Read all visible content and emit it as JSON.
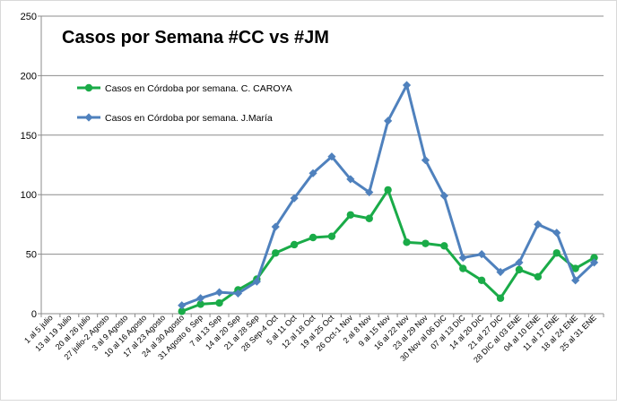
{
  "chart_data": {
    "type": "line",
    "title": "Casos por Semana #CC vs #JM",
    "xlabel": "",
    "ylabel": "",
    "ylim": [
      0,
      250
    ],
    "yticks": [
      0,
      50,
      100,
      150,
      200,
      250
    ],
    "grid": true,
    "legend_position": "top-left",
    "categories": [
      "1 al 5 julio",
      "13 al 19 Julio",
      "20 al 26 julio",
      "27 julio-2 Agosto",
      "3 al 9 Agosto",
      "10 al 16 Agosto",
      "17 al 23 Agosto",
      "24 al 30 Agosto",
      "31 Agosto 6 Sep",
      "7 al 13 Sep",
      "14 al 20 Sep",
      "21 al 28 Sep",
      "28 Sep-4 Oct",
      "5 al 11 Oct",
      "12 al 18 Oct",
      "19 al 25 Oct",
      "26 Oct-1 Nov",
      "2 al 8 Nov",
      "9 al 15 Nov",
      "16 al 22 Nov",
      "23 al 29 Nov",
      "30 Nov al 06 DIC",
      "07 al 13 DIC",
      "14 al 20 DIC",
      "21 al 27 DIC",
      "28 DIC al 03 ENE",
      "04 al 10 ENE",
      "11 al 17 ENE",
      "18 al 24 ENE",
      "25 al 31 ENE"
    ],
    "series": [
      {
        "name": "Casos en Córdoba por semana. C. CAROYA",
        "color": "#1aab48",
        "marker": "circle",
        "values": [
          null,
          null,
          null,
          null,
          null,
          null,
          null,
          2,
          8,
          9,
          20,
          29,
          51,
          58,
          64,
          65,
          83,
          80,
          104,
          60,
          59,
          57,
          38,
          28,
          13,
          37,
          31,
          51,
          38,
          47
        ]
      },
      {
        "name": "Casos en Córdoba por semana. J.María",
        "color": "#4f81bd",
        "marker": "diamond",
        "values": [
          null,
          null,
          null,
          null,
          null,
          null,
          null,
          7,
          13,
          18,
          17,
          27,
          73,
          97,
          118,
          132,
          113,
          102,
          162,
          192,
          129,
          99,
          47,
          50,
          35,
          43,
          75,
          68,
          28,
          43
        ]
      }
    ]
  }
}
